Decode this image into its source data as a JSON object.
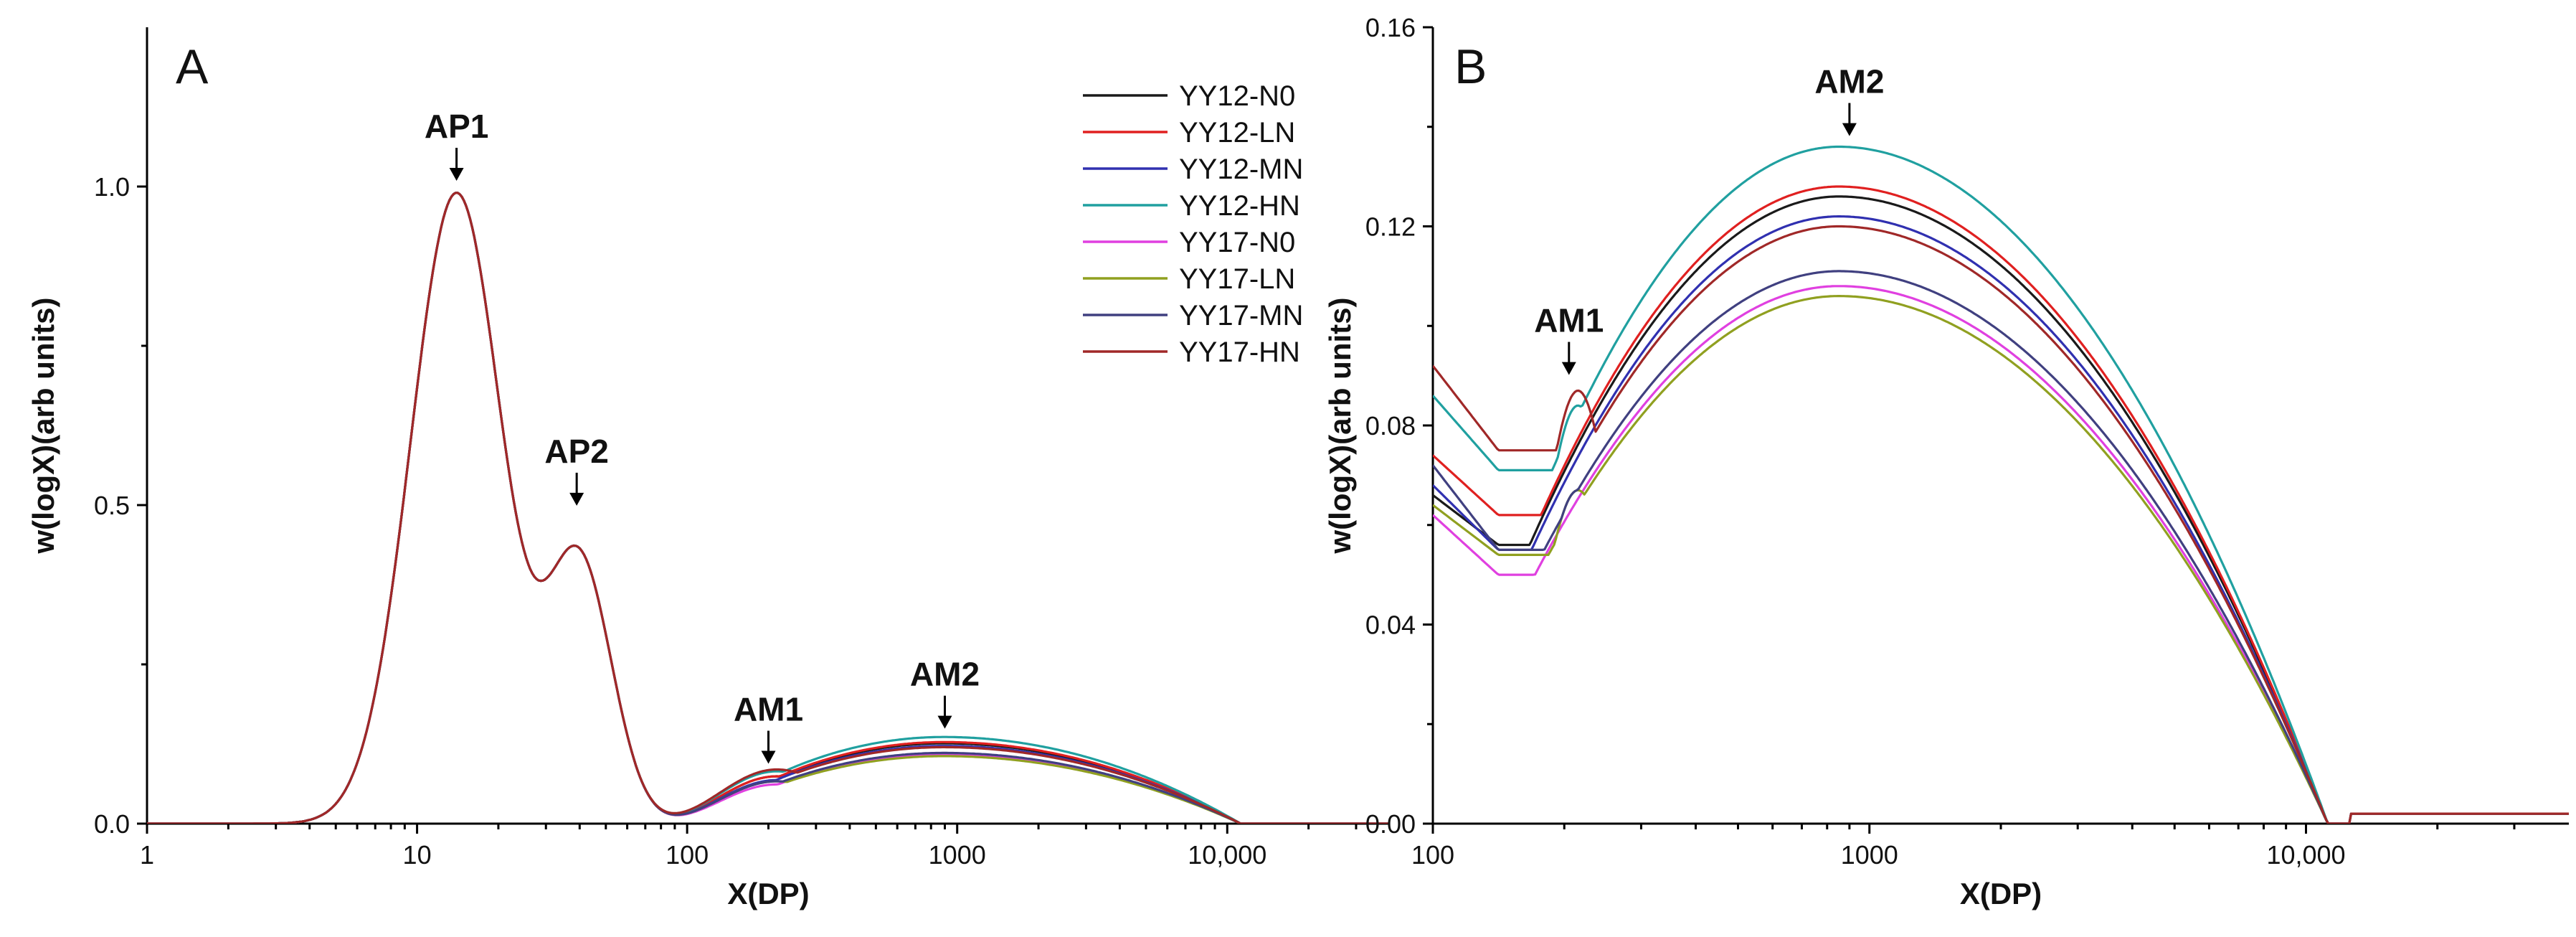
{
  "chart_data": [
    {
      "type": "line",
      "panel": "A",
      "xlabel": "X(DP)",
      "ylabel": "w(logX)(arb units)",
      "xscale": "log",
      "xlim": [
        1,
        40000
      ],
      "ylim": [
        0,
        1.25
      ],
      "xticks": [
        {
          "value": 1,
          "label": "1"
        },
        {
          "value": 10,
          "label": "10"
        },
        {
          "value": 100,
          "label": "100"
        },
        {
          "value": 1000,
          "label": "1000"
        },
        {
          "value": 10000,
          "label": "10,000"
        }
      ],
      "yticks": [
        {
          "value": 0.0,
          "label": "0.0"
        },
        {
          "value": 0.5,
          "label": "0.5"
        },
        {
          "value": 1.0,
          "label": "1.0"
        }
      ],
      "legend": {
        "position": "top-right",
        "entries": [
          "YY12-N0",
          "YY12-LN",
          "YY12-MN",
          "YY12-HN",
          "YY17-N0",
          "YY17-LN",
          "YY17-MN",
          "YY17-HN"
        ]
      },
      "annotations": [
        {
          "text": "AP1",
          "x": 14,
          "y": 1.0
        },
        {
          "text": "AP2",
          "x": 39,
          "y": 0.49
        },
        {
          "text": "AM1",
          "x": 200,
          "y": 0.085
        },
        {
          "text": "AM2",
          "x": 900,
          "y": 0.14
        }
      ],
      "series": [
        {
          "name": "YY12-N0",
          "color": "#1a1a1a",
          "am1": 0.076,
          "dip": 0.062,
          "am2": 0.126
        },
        {
          "name": "YY12-LN",
          "color": "#e02020",
          "am1": 0.076,
          "dip": 0.062,
          "am2": 0.128
        },
        {
          "name": "YY12-MN",
          "color": "#3030b0",
          "am1": 0.07,
          "dip": 0.056,
          "am2": 0.122
        },
        {
          "name": "YY12-HN",
          "color": "#20a0a0",
          "am1": 0.084,
          "dip": 0.07,
          "am2": 0.136
        },
        {
          "name": "YY17-N0",
          "color": "#e040e0",
          "am1": 0.063,
          "dip": 0.05,
          "am2": 0.108
        },
        {
          "name": "YY17-LN",
          "color": "#90a020",
          "am1": 0.068,
          "dip": 0.055,
          "am2": 0.106
        },
        {
          "name": "YY17-MN",
          "color": "#404080",
          "am1": 0.068,
          "dip": 0.055,
          "am2": 0.111
        },
        {
          "name": "YY17-HN",
          "color": "#a02828",
          "am1": 0.087,
          "dip": 0.075,
          "am2": 0.12
        }
      ]
    },
    {
      "type": "line",
      "panel": "B",
      "xlabel": "X(DP)",
      "ylabel": "w(logX)(arb units)",
      "xscale": "log",
      "xlim": [
        100,
        40000
      ],
      "ylim": [
        0,
        0.16
      ],
      "xticks": [
        {
          "value": 100,
          "label": "100"
        },
        {
          "value": 1000,
          "label": "1000"
        },
        {
          "value": 10000,
          "label": "10,000"
        }
      ],
      "yticks": [
        {
          "value": 0.0,
          "label": "0.00"
        },
        {
          "value": 0.04,
          "label": "0.04"
        },
        {
          "value": 0.08,
          "label": "0.08"
        },
        {
          "value": 0.12,
          "label": "0.12"
        },
        {
          "value": 0.16,
          "label": "0.16"
        }
      ],
      "annotations": [
        {
          "text": "AM1",
          "x": 205,
          "y": 0.089
        },
        {
          "text": "AM2",
          "x": 900,
          "y": 0.137
        }
      ],
      "series": [
        {
          "name": "YY12-N0",
          "color": "#1a1a1a",
          "start": 0.066,
          "dip": 0.056,
          "am1": 0.072,
          "am2": 0.126
        },
        {
          "name": "YY12-LN",
          "color": "#e02020",
          "start": 0.074,
          "dip": 0.062,
          "am1": 0.074,
          "am2": 0.128
        },
        {
          "name": "YY12-MN",
          "color": "#3030b0",
          "start": 0.068,
          "dip": 0.055,
          "am1": 0.07,
          "am2": 0.122
        },
        {
          "name": "YY12-HN",
          "color": "#20a0a0",
          "start": 0.086,
          "dip": 0.071,
          "am1": 0.084,
          "am2": 0.136
        },
        {
          "name": "YY17-N0",
          "color": "#e040e0",
          "start": 0.062,
          "dip": 0.05,
          "am1": 0.062,
          "am2": 0.108
        },
        {
          "name": "YY17-LN",
          "color": "#90a020",
          "start": 0.064,
          "dip": 0.054,
          "am1": 0.067,
          "am2": 0.106
        },
        {
          "name": "YY17-MN",
          "color": "#404080",
          "start": 0.072,
          "dip": 0.055,
          "am1": 0.067,
          "am2": 0.111
        },
        {
          "name": "YY17-HN",
          "color": "#a02828",
          "start": 0.092,
          "dip": 0.075,
          "am1": 0.087,
          "am2": 0.12
        }
      ]
    }
  ]
}
